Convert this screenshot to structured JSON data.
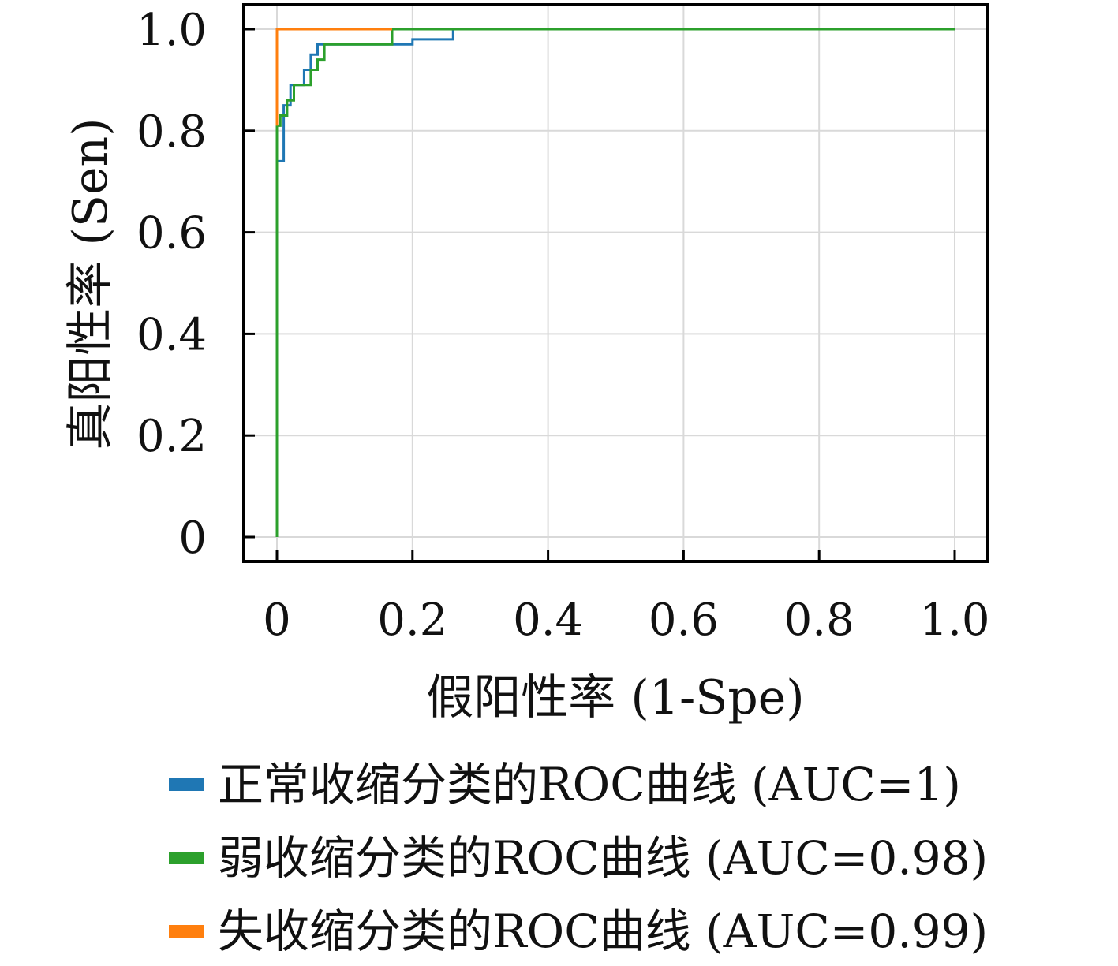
{
  "chart_data": {
    "type": "line",
    "xlabel": "假阳性率 (1-Spe)",
    "ylabel": "真阳性率 (Sen)",
    "xlim": [
      0,
      1
    ],
    "ylim": [
      0,
      1
    ],
    "x_ticks": [
      "0",
      "0.2",
      "0.4",
      "0.6",
      "0.8",
      "1.0"
    ],
    "y_ticks": [
      "0",
      "0.2",
      "0.4",
      "0.6",
      "0.8",
      "1.0"
    ],
    "grid": true,
    "legend_position": "bottom",
    "series": [
      {
        "name": "正常收缩分类的ROC曲线 (AUC=1)",
        "color": "#1f77b4",
        "x": [
          0,
          0,
          0.01,
          0.01,
          0.02,
          0.02,
          0.03,
          0.03,
          0.04,
          0.04,
          0.05,
          0.05,
          0.06,
          0.06,
          0.07,
          0.07,
          0.2,
          0.2,
          0.26,
          0.26,
          1.0
        ],
        "y": [
          0,
          0.74,
          0.74,
          0.85,
          0.85,
          0.89,
          0.89,
          0.89,
          0.89,
          0.92,
          0.92,
          0.95,
          0.95,
          0.97,
          0.97,
          0.97,
          0.97,
          0.98,
          0.98,
          1.0,
          1.0
        ]
      },
      {
        "name": "弱收缩分类的ROC曲线 (AUC=0.98)",
        "color": "#2ca02c",
        "x": [
          0,
          0,
          0.005,
          0.005,
          0.015,
          0.015,
          0.025,
          0.025,
          0.035,
          0.035,
          0.05,
          0.05,
          0.06,
          0.06,
          0.07,
          0.07,
          0.17,
          0.17,
          1.0
        ],
        "y": [
          0,
          0.81,
          0.81,
          0.83,
          0.83,
          0.86,
          0.86,
          0.89,
          0.89,
          0.89,
          0.89,
          0.92,
          0.92,
          0.94,
          0.94,
          0.97,
          0.97,
          1.0,
          1.0
        ]
      },
      {
        "name": "失收缩分类的ROC曲线 (AUC=0.99)",
        "color": "#ff7f0e",
        "x": [
          0,
          0,
          0.17,
          0.17
        ],
        "y": [
          0.81,
          1.0,
          1.0,
          1.0
        ]
      }
    ]
  }
}
